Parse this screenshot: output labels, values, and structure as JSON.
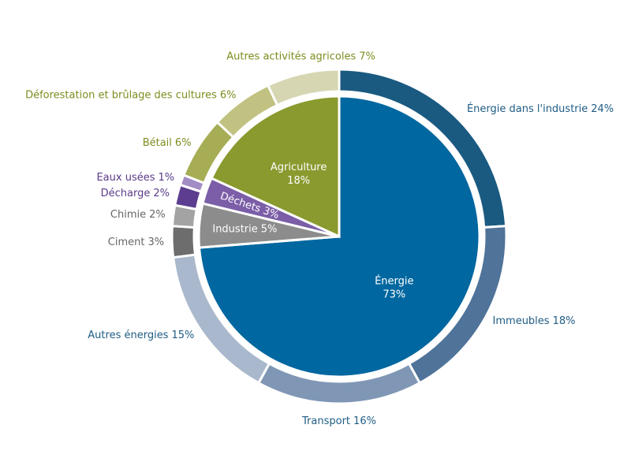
{
  "chart_data": {
    "type": "sunburst",
    "inner": {
      "categories": [
        "Énergie",
        "Industrie",
        "Déchets",
        "Agriculture"
      ],
      "values": [
        73,
        5,
        3,
        18
      ],
      "value_labels": [
        "73%",
        "5%",
        "3%",
        "18%"
      ],
      "colors": [
        "#0067a0",
        "#8c8c8c",
        "#7b5ea7",
        "#8a9a2e"
      ]
    },
    "outer": {
      "categories": [
        "Énergie dans l'industrie",
        "Immeubles",
        "Transport",
        "Autres énergies",
        "Ciment",
        "Chimie",
        "Décharge",
        "Eaux usées",
        "Bétail",
        "Déforestation et brûlage des cultures",
        "Autres activités agricoles"
      ],
      "values": [
        24,
        18,
        16,
        15,
        3,
        2,
        2,
        1,
        6,
        6,
        7
      ],
      "value_labels": [
        "24%",
        "18%",
        "16%",
        "15%",
        "3%",
        "2%",
        "2%",
        "1%",
        "6%",
        "6%",
        "7%"
      ],
      "colors": [
        "#1a5a80",
        "#4f7399",
        "#7f97b5",
        "#a9b8cc",
        "#6d6d6d",
        "#a3a3a3",
        "#5c3d8f",
        "#a28cc4",
        "#a7ad55",
        "#c1c281",
        "#d6d6b2"
      ],
      "label_colors": [
        "#1f5c84",
        "#1f5c84",
        "#1f5c84",
        "#1f5c84",
        "#666666",
        "#666666",
        "#5a3a8a",
        "#5a3a8a",
        "#7f8c1e",
        "#7f8c1e",
        "#7f8c1e"
      ]
    }
  }
}
